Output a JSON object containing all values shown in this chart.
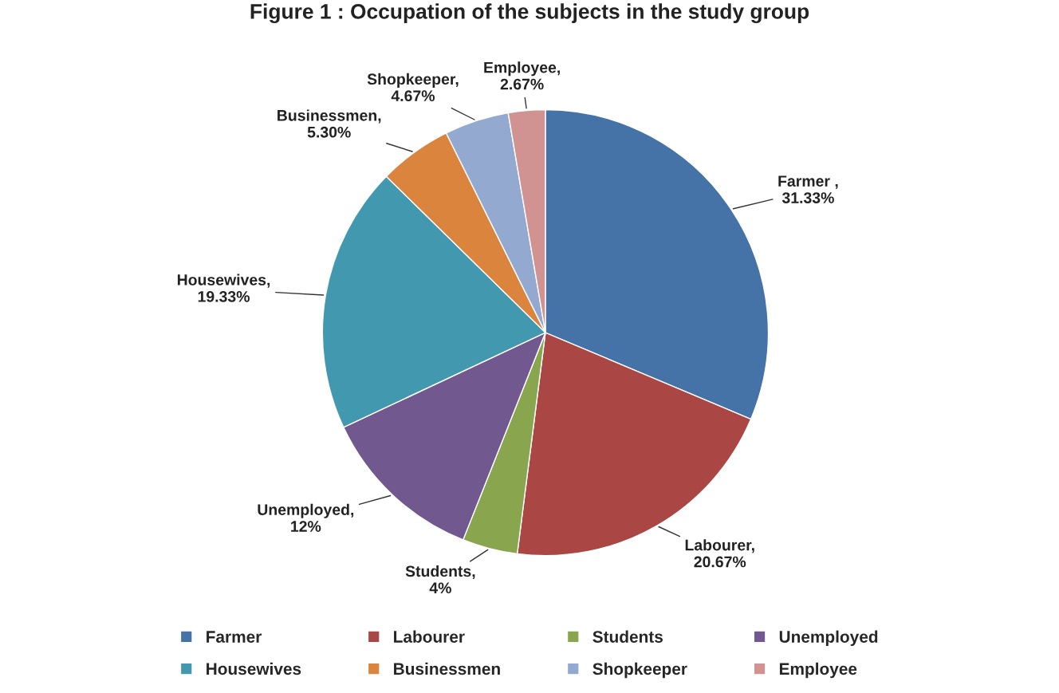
{
  "chart_data": {
    "type": "pie",
    "title": "Figure 1 : Occupation of the subjects in the study group",
    "categories": [
      "Farmer",
      "Labourer",
      "Students",
      "Unemployed",
      "Housewives",
      "Businessmen",
      "Shopkeeper",
      "Employee"
    ],
    "values": [
      31.33,
      20.67,
      4,
      12,
      19.33,
      5.3,
      4.67,
      2.67
    ],
    "colors": [
      "#4572a7",
      "#aa4643",
      "#89a54e",
      "#71588f",
      "#4198af",
      "#db843d",
      "#93a9cf",
      "#d19392"
    ],
    "value_labels": [
      "Farmer ,\n31.33%",
      "Labourer,\n20.67%",
      "Students,\n4%",
      "Unemployed,\n12%",
      "Housewives,\n19.33%",
      "Businessmen,\n5.30%",
      "Shopkeeper,\n4.67%",
      "Employee,\n2.67%"
    ],
    "legend": "bottom"
  }
}
